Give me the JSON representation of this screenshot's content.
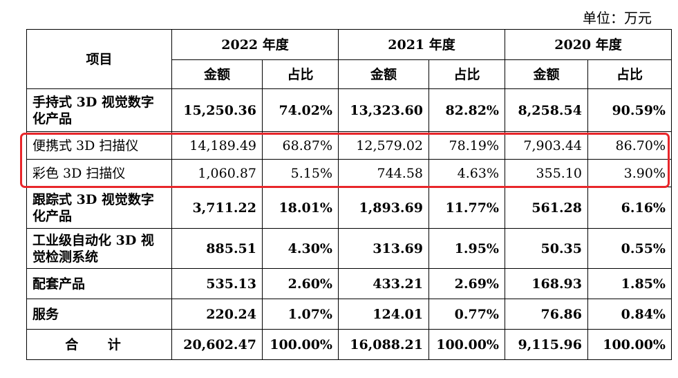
{
  "unit_label": "单位：万元",
  "header": {
    "item_label": "项目",
    "years": [
      "2022 年度",
      "2021 年度",
      "2020 年度"
    ],
    "amount_label": "金额",
    "ratio_label": "占比"
  },
  "rows": [
    {
      "label": "手持式 3D 视觉数字化产品",
      "values": [
        "15,250.36",
        "74.02%",
        "13,323.60",
        "82.82%",
        "8,258.54",
        "90.59%"
      ]
    },
    {
      "label": "便携式 3D 扫描仪",
      "values": [
        "14,189.49",
        "68.87%",
        "12,579.02",
        "78.19%",
        "7,903.44",
        "86.70%"
      ]
    },
    {
      "label": "彩色 3D 扫描仪",
      "values": [
        "1,060.87",
        "5.15%",
        "744.58",
        "4.63%",
        "355.10",
        "3.90%"
      ]
    },
    {
      "label": "跟踪式 3D 视觉数字化产品",
      "values": [
        "3,711.22",
        "18.01%",
        "1,893.69",
        "11.77%",
        "561.28",
        "6.16%"
      ]
    },
    {
      "label": "工业级自动化 3D 视觉检测系统",
      "values": [
        "885.51",
        "4.30%",
        "313.69",
        "1.95%",
        "50.35",
        "0.55%"
      ]
    },
    {
      "label": "配套产品",
      "values": [
        "535.13",
        "2.60%",
        "433.21",
        "2.69%",
        "168.93",
        "1.85%"
      ]
    },
    {
      "label": "服务",
      "values": [
        "220.24",
        "1.07%",
        "124.01",
        "0.77%",
        "76.86",
        "0.84%"
      ]
    },
    {
      "label": "合 计",
      "values": [
        "20,602.47",
        "100.00%",
        "16,088.21",
        "100.00%",
        "9,115.96",
        "100.00%"
      ]
    }
  ],
  "highlight_color": "#e8262a"
}
